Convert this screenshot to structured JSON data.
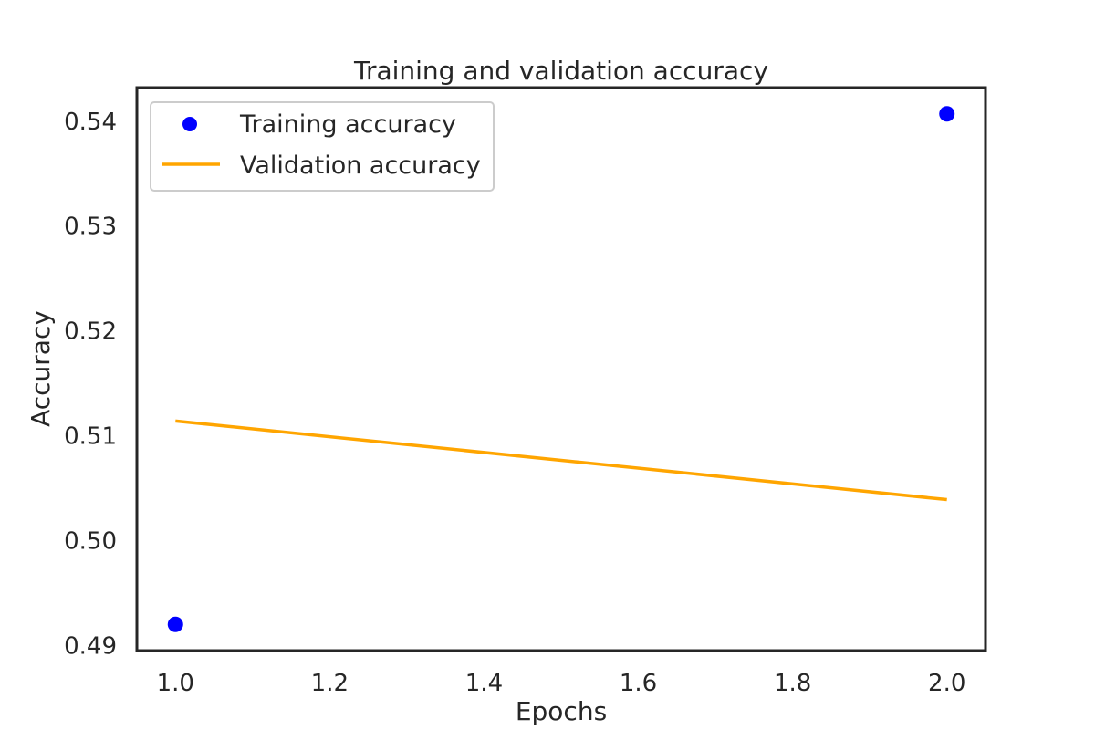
{
  "chart_data": {
    "type": "line",
    "title": "Training and validation accuracy",
    "xlabel": "Epochs",
    "ylabel": "Accuracy",
    "x": [
      1.0,
      2.0
    ],
    "series": [
      {
        "name": "Training accuracy",
        "style": "markers",
        "color": "#0000ff",
        "values": [
          0.492,
          0.5407
        ]
      },
      {
        "name": "Validation accuracy",
        "style": "line",
        "color": "#ffa500",
        "values": [
          0.5114,
          0.5039
        ]
      }
    ],
    "xlim": [
      0.95,
      2.05
    ],
    "ylim": [
      0.4895,
      0.5432
    ],
    "xticks": [
      "1.0",
      "1.2",
      "1.4",
      "1.6",
      "1.8",
      "2.0"
    ],
    "yticks": [
      "0.49",
      "0.50",
      "0.51",
      "0.52",
      "0.53",
      "0.54"
    ],
    "grid": false,
    "legend_position": "top-left"
  }
}
